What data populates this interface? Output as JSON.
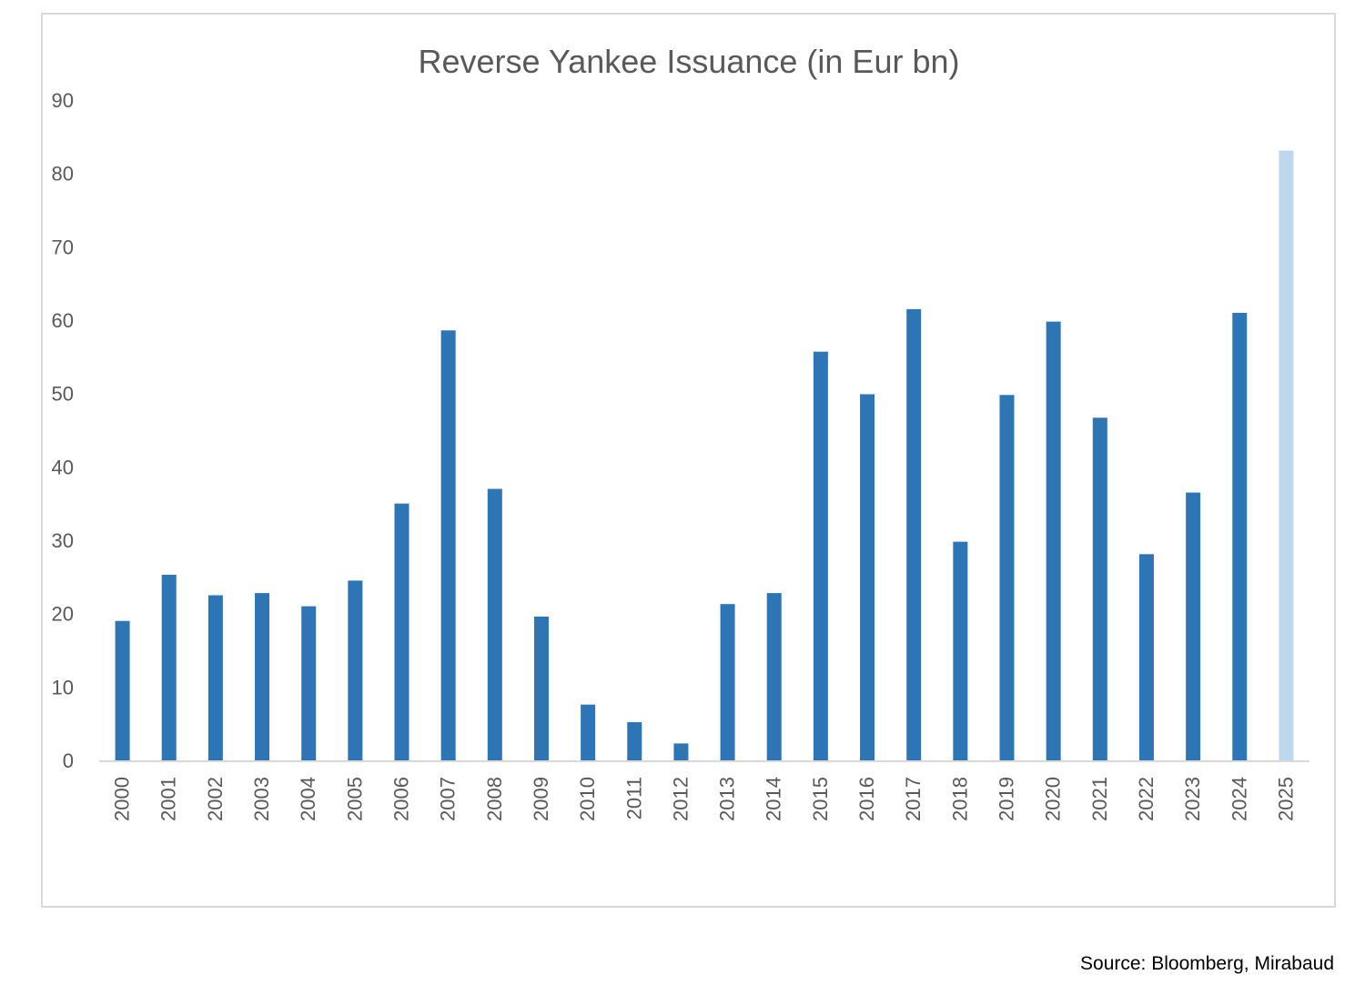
{
  "chart_data": {
    "type": "bar",
    "title": "Reverse Yankee Issuance (in Eur bn)",
    "xlabel": "",
    "ylabel": "",
    "ylim": [
      0,
      90
    ],
    "yticks": [
      0,
      10,
      20,
      30,
      40,
      50,
      60,
      70,
      80,
      90
    ],
    "grid": false,
    "legend": "none",
    "categories": [
      "2000",
      "2001",
      "2002",
      "2003",
      "2004",
      "2005",
      "2006",
      "2007",
      "2008",
      "2009",
      "2010",
      "2011",
      "2012",
      "2013",
      "2014",
      "2015",
      "2016",
      "2017",
      "2018",
      "2019",
      "2020",
      "2021",
      "2022",
      "2023",
      "2024",
      "2025"
    ],
    "values": [
      19,
      25.3,
      22.5,
      22.8,
      21,
      24.5,
      35,
      58.6,
      37,
      19.6,
      7.6,
      5.2,
      2.3,
      21.3,
      22.8,
      55.7,
      49.9,
      61.5,
      29.8,
      49.8,
      59.8,
      46.7,
      28.1,
      36.5,
      61,
      83.1
    ],
    "bar_color": "#2e75b6",
    "highlight_color": "#bdd7ee",
    "highlight_categories": [
      "2025"
    ]
  },
  "source": "Source: Bloomberg, Mirabaud"
}
